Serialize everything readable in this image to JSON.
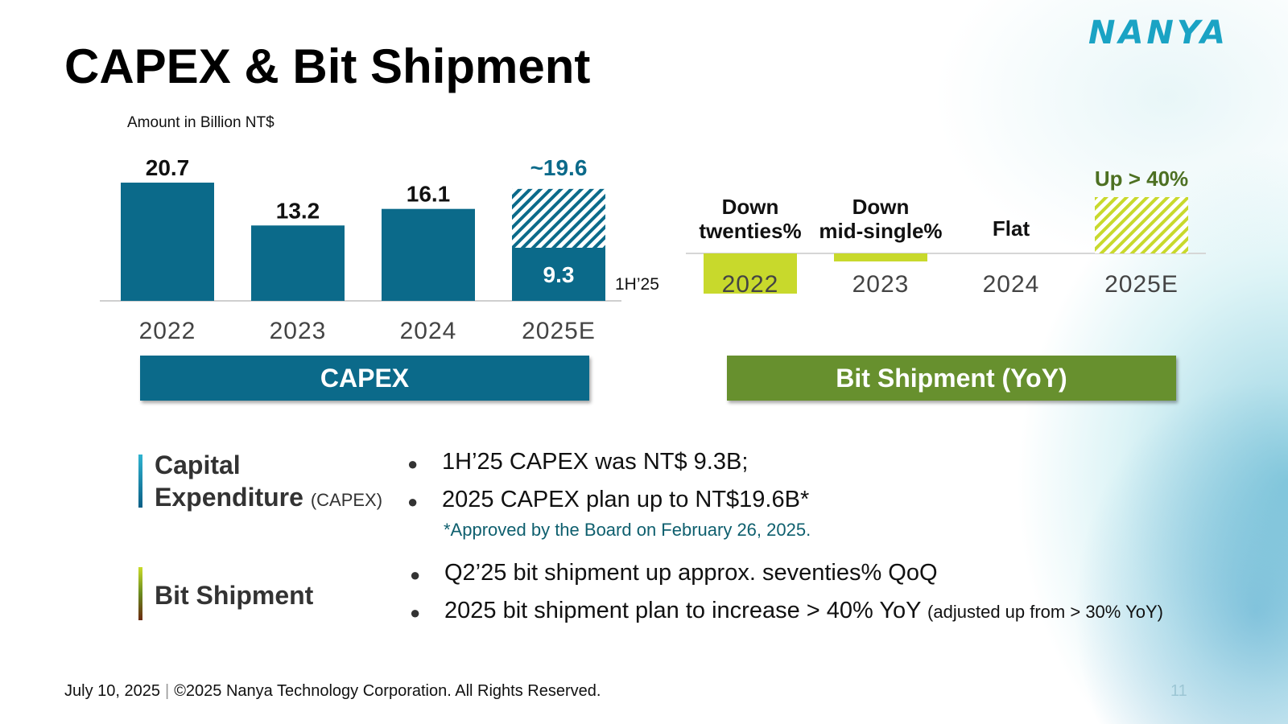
{
  "page": {
    "title": "CAPEX & Bit Shipment",
    "logo_text": "NANYA",
    "unit_label": "Amount in Billion NT$"
  },
  "chart_data": [
    {
      "type": "bar",
      "categories": [
        "2022",
        "2023",
        "2024",
        "2025E"
      ],
      "values": [
        20.7,
        13.2,
        16.1,
        19.6
      ],
      "value_labels": [
        "20.7",
        "13.2",
        "16.1",
        "~19.6"
      ],
      "partial": {
        "category": "2025E",
        "label": "1H’25",
        "value": 9.3,
        "value_label": "9.3"
      },
      "ylabel": "Amount in Billion NT$",
      "ylim": [
        0,
        22
      ],
      "grid": false,
      "legend": "none",
      "colors": {
        "bar": "#0b6a8a",
        "estimate_label": "#0b6a8a",
        "hatch": "#0b6a8a"
      }
    },
    {
      "type": "bar",
      "categories": [
        "2022",
        "2023",
        "2024",
        "2025E"
      ],
      "labels": [
        "Down twenties%",
        "Down mid-single%",
        "Flat",
        "Up > 40%"
      ],
      "label_lines": [
        [
          "Down",
          "twenties%"
        ],
        [
          "Down",
          "mid-single%"
        ],
        [
          "Flat"
        ],
        [
          "Up > 40%"
        ]
      ],
      "values": [
        -25,
        -5,
        0,
        40
      ],
      "ylim": [
        -25,
        40
      ],
      "grid": false,
      "legend": "none",
      "colors": {
        "bar": "#c8d92c",
        "up_label": "#4d7022",
        "hatch": "#c8d92c"
      }
    }
  ],
  "banners": {
    "capex": "CAPEX",
    "bit": "Bit Shipment (YoY)"
  },
  "sections": {
    "capex": {
      "label_line1": "Capital",
      "label_line2": "Expenditure",
      "label_sub": "(CAPEX)",
      "bullets": [
        "1H’25 CAPEX was NT$ 9.3B;",
        "2025 CAPEX plan up to NT$19.6B*"
      ],
      "footnote": "*Approved by the Board on February 26, 2025."
    },
    "bit": {
      "label": "Bit Shipment",
      "bullets": [
        "Q2’25 bit shipment up approx. seventies% QoQ",
        "2025 bit shipment plan to increase > 40% YoY"
      ],
      "bullet2_note": "(adjusted up from > 30% YoY)"
    }
  },
  "bullet_symbol": "●",
  "footer": {
    "date": "July 10, 2025",
    "separator": "|",
    "copyright": "©2025 Nanya Technology Corporation. All Rights Reserved.",
    "page_number": "11"
  },
  "colors": {
    "capex_blue": "#0b6a8a",
    "bit_green": "#67902e",
    "bit_lime": "#c8d92c",
    "logo": "#1aa3c4"
  }
}
